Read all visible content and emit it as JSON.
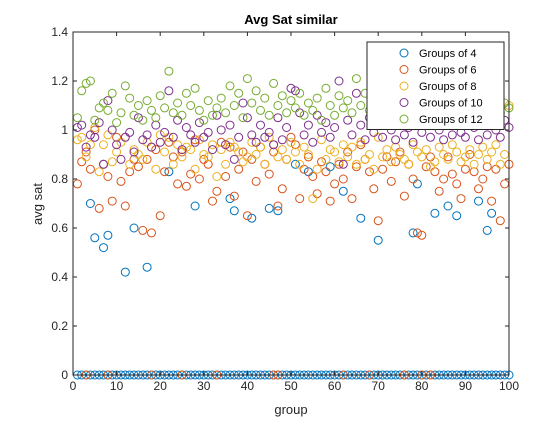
{
  "chart_data": {
    "type": "scatter",
    "title": "Avg Sat similar",
    "xlabel": "group",
    "ylabel": "avg sat",
    "xlim": [
      0,
      100
    ],
    "ylim": [
      0,
      1.4
    ],
    "xticks": [
      0,
      10,
      20,
      30,
      40,
      50,
      60,
      70,
      80,
      90,
      100
    ],
    "yticks": [
      0,
      0.2,
      0.4,
      0.6,
      0.8,
      1,
      1.2,
      1.4
    ],
    "grid": false,
    "legend_position": "top-right",
    "marker": "open-circle",
    "series": [
      {
        "name": "Groups of 4",
        "color": "#0072BD",
        "x": [
          1,
          2,
          3,
          4,
          5,
          6,
          7,
          8,
          9,
          10,
          11,
          12,
          13,
          14,
          15,
          16,
          17,
          18,
          19,
          20,
          21,
          22,
          23,
          24,
          25,
          26,
          27,
          28,
          29,
          30,
          31,
          32,
          33,
          34,
          35,
          36,
          37,
          38,
          39,
          40,
          41,
          42,
          43,
          44,
          45,
          46,
          47,
          48,
          49,
          50,
          51,
          52,
          53,
          54,
          55,
          56,
          57,
          58,
          59,
          60,
          61,
          62,
          63,
          64,
          65,
          66,
          67,
          68,
          69,
          70,
          71,
          72,
          73,
          74,
          75,
          76,
          77,
          78,
          79,
          80,
          81,
          82,
          83,
          84,
          85,
          86,
          87,
          88,
          89,
          90,
          91,
          92,
          93,
          94,
          95,
          96,
          97,
          98,
          99,
          100,
          4,
          5,
          7,
          8,
          12,
          14,
          17,
          22,
          28,
          36,
          37,
          41,
          45,
          47,
          51,
          54,
          59,
          62,
          66,
          70,
          78,
          79,
          83,
          86,
          88,
          93,
          95,
          96
        ],
        "y": [
          0,
          0,
          0,
          0,
          0,
          0,
          0,
          0,
          0,
          0,
          0,
          0,
          0,
          0,
          0,
          0,
          0,
          0,
          0,
          0,
          0,
          0,
          0,
          0,
          0,
          0,
          0,
          0,
          0,
          0,
          0,
          0,
          0,
          0,
          0,
          0,
          0,
          0,
          0,
          0,
          0,
          0,
          0,
          0,
          0,
          0,
          0,
          0,
          0,
          0,
          0,
          0,
          0,
          0,
          0,
          0,
          0,
          0,
          0,
          0,
          0,
          0,
          0,
          0,
          0,
          0,
          0,
          0,
          0,
          0,
          0,
          0,
          0,
          0,
          0,
          0,
          0,
          0,
          0,
          0,
          0,
          0,
          0,
          0,
          0,
          0,
          0,
          0,
          0,
          0,
          0,
          0,
          0,
          0,
          0,
          0,
          0,
          0,
          0,
          0,
          0.7,
          0.56,
          0.52,
          0.57,
          0.42,
          0.6,
          0.44,
          0.83,
          0.69,
          0.72,
          0.67,
          0.64,
          0.68,
          0.67,
          0.86,
          0.83,
          0.85,
          0.75,
          0.64,
          0.55,
          0.58,
          0.78,
          0.66,
          0.69,
          0.65,
          0.71,
          0.59,
          0.66
        ]
      },
      {
        "name": "Groups of 6",
        "color": "#D95319",
        "x": [
          1,
          2,
          3,
          4,
          5,
          6,
          7,
          8,
          9,
          10,
          11,
          12,
          13,
          14,
          15,
          16,
          17,
          18,
          19,
          20,
          21,
          22,
          23,
          24,
          25,
          26,
          27,
          28,
          29,
          30,
          31,
          32,
          33,
          34,
          35,
          36,
          37,
          38,
          39,
          40,
          41,
          42,
          43,
          44,
          45,
          46,
          47,
          48,
          49,
          50,
          51,
          52,
          53,
          54,
          55,
          56,
          57,
          58,
          59,
          60,
          61,
          62,
          63,
          64,
          65,
          66,
          67,
          68,
          69,
          70,
          71,
          72,
          73,
          74,
          75,
          76,
          77,
          78,
          79,
          80,
          81,
          82,
          83,
          84,
          85,
          86,
          87,
          88,
          89,
          90,
          91,
          92,
          93,
          94,
          95,
          96,
          97,
          98,
          99,
          100,
          3,
          8,
          18,
          25,
          33,
          46,
          47,
          62,
          68,
          76,
          80,
          82
        ],
        "y": [
          0.78,
          0.87,
          0.91,
          0.84,
          1.0,
          0.68,
          0.86,
          0.81,
          0.71,
          0.97,
          0.79,
          0.69,
          0.83,
          0.88,
          0.85,
          0.59,
          0.88,
          0.58,
          0.92,
          0.65,
          0.83,
          0.95,
          0.89,
          0.78,
          0.91,
          0.77,
          0.82,
          0.96,
          0.8,
          0.88,
          0.86,
          0.71,
          0.75,
          0.95,
          0.81,
          0.93,
          0.73,
          0.84,
          0.91,
          0.65,
          0.88,
          0.79,
          0.93,
          0.86,
          0.82,
          0.91,
          0.69,
          0.76,
          0.88,
          0.97,
          0.94,
          0.72,
          0.84,
          0.89,
          0.81,
          0.74,
          0.87,
          0.83,
          0.71,
          0.78,
          0.86,
          0.8,
          0.91,
          0.72,
          0.85,
          0.94,
          0.88,
          0.83,
          0.76,
          0.63,
          0.84,
          0.89,
          0.79,
          0.87,
          0.91,
          0.73,
          0.86,
          0.8,
          0.58,
          0.57,
          0.85,
          0.89,
          0.83,
          0.75,
          0.8,
          0.89,
          0.82,
          0.78,
          0.72,
          0.84,
          0.9,
          0.83,
          0.76,
          0.8,
          0.85,
          0.71,
          0.84,
          0.63,
          0.78,
          0.86,
          0,
          0,
          0,
          0,
          0,
          0,
          0,
          0,
          0,
          0,
          0,
          0
        ]
      },
      {
        "name": "Groups of 8",
        "color": "#EDB120",
        "x": [
          1,
          2,
          3,
          4,
          5,
          6,
          7,
          8,
          9,
          10,
          11,
          12,
          13,
          14,
          15,
          16,
          17,
          18,
          19,
          20,
          21,
          22,
          23,
          24,
          25,
          26,
          27,
          28,
          29,
          30,
          31,
          32,
          33,
          34,
          35,
          36,
          37,
          38,
          39,
          40,
          41,
          42,
          43,
          44,
          45,
          46,
          47,
          48,
          49,
          50,
          51,
          52,
          53,
          54,
          55,
          56,
          57,
          58,
          59,
          60,
          61,
          62,
          63,
          64,
          65,
          66,
          67,
          68,
          69,
          70,
          71,
          72,
          73,
          74,
          75,
          76,
          77,
          78,
          79,
          80,
          81,
          82,
          83,
          84,
          85,
          86,
          87,
          88,
          89,
          90,
          91,
          92,
          93,
          94,
          95,
          96,
          97,
          98,
          99,
          100
        ],
        "y": [
          0.96,
          0.97,
          0.89,
          0.94,
          1.01,
          0.83,
          0.94,
          0.98,
          0.87,
          0.91,
          0.95,
          0.97,
          0.86,
          0.92,
          0.9,
          0.88,
          0.95,
          0.93,
          0.84,
          0.98,
          0.91,
          0.97,
          0.86,
          0.94,
          0.89,
          0.93,
          0.92,
          0.84,
          0.96,
          0.9,
          0.89,
          0.94,
          0.81,
          0.92,
          0.86,
          0.95,
          0.93,
          0.91,
          0.87,
          0.89,
          0.95,
          0.9,
          0.93,
          0.86,
          0.97,
          0.94,
          0.89,
          0.92,
          0.88,
          0.95,
          0.91,
          0.86,
          0.93,
          0.9,
          0.72,
          0.84,
          0.96,
          0.88,
          0.92,
          0.91,
          0.87,
          0.94,
          0.89,
          0.93,
          0.86,
          0.95,
          0.88,
          0.9,
          0.84,
          0.97,
          0.89,
          0.92,
          0.87,
          0.93,
          0.9,
          0.88,
          0.86,
          0.94,
          0.91,
          0.89,
          0.92,
          0.85,
          0.87,
          0.93,
          0.9,
          0.88,
          0.94,
          0.91,
          0.87,
          0.89,
          0.92,
          0.86,
          0.9,
          0.93,
          0.88,
          0.91,
          0.94,
          0.86,
          0.9,
          1.1
        ]
      },
      {
        "name": "Groups of 10",
        "color": "#7E2F8E",
        "x": [
          1,
          2,
          3,
          4,
          5,
          6,
          7,
          8,
          9,
          10,
          11,
          12,
          13,
          14,
          15,
          16,
          17,
          18,
          19,
          20,
          21,
          22,
          23,
          24,
          25,
          26,
          27,
          28,
          29,
          30,
          31,
          32,
          33,
          34,
          35,
          36,
          37,
          38,
          39,
          40,
          41,
          42,
          43,
          44,
          45,
          46,
          47,
          48,
          49,
          50,
          51,
          52,
          53,
          54,
          55,
          56,
          57,
          58,
          59,
          60,
          61,
          62,
          63,
          64,
          65,
          66,
          67,
          68,
          69,
          70,
          71,
          72,
          73,
          74,
          75,
          76,
          77,
          78,
          79,
          80,
          81,
          82,
          83,
          84,
          85,
          86,
          87,
          88,
          89,
          90,
          91,
          92,
          93,
          94,
          95,
          96,
          97,
          98,
          99,
          100
        ],
        "y": [
          1.01,
          1.02,
          0.93,
          0.98,
          0.97,
          1.03,
          0.86,
          1.12,
          1.0,
          0.94,
          0.88,
          0.97,
          0.99,
          0.91,
          1.05,
          0.96,
          0.98,
          0.93,
          1.02,
          0.95,
          0.99,
          1.16,
          0.97,
          1.04,
          0.92,
          1.01,
          0.98,
          0.95,
          1.03,
          0.97,
          0.99,
          0.92,
          1.06,
          1.0,
          0.94,
          1.02,
          0.88,
          0.97,
          1.11,
          1.05,
          0.98,
          0.95,
          1.02,
          0.97,
          0.99,
          0.94,
          1.05,
          0.96,
          1.01,
          1.17,
          1.16,
          1.07,
          0.98,
          1.02,
          0.95,
          1.06,
          0.99,
          1.03,
          0.97,
          1.01,
          1.2,
          0.86,
          1.04,
          0.98,
          1.15,
          1.02,
          0.96,
          1.05,
          0.99,
          1.03,
          0.97,
          1.04,
          1.0,
          0.96,
          1.02,
          0.98,
          1.01,
          0.95,
          1.04,
          0.99,
          1.03,
          0.97,
          1.05,
          1.0,
          0.96,
          1.02,
          0.98,
          1.04,
          0.99,
          0.97,
          1.03,
          1.01,
          0.96,
          1.05,
          0.98,
          1.02,
          1.0,
          0.97,
          1.04,
          1.01
        ]
      },
      {
        "name": "Groups of 12",
        "color": "#77AC30",
        "x": [
          1,
          2,
          3,
          4,
          5,
          6,
          7,
          8,
          9,
          10,
          11,
          12,
          13,
          14,
          15,
          16,
          17,
          18,
          19,
          20,
          21,
          22,
          23,
          24,
          25,
          26,
          27,
          28,
          29,
          30,
          31,
          32,
          33,
          34,
          35,
          36,
          37,
          38,
          39,
          40,
          41,
          42,
          43,
          44,
          45,
          46,
          47,
          48,
          49,
          50,
          51,
          52,
          53,
          54,
          55,
          56,
          57,
          58,
          59,
          60,
          61,
          62,
          63,
          64,
          65,
          66,
          67,
          68,
          69,
          70,
          71,
          72,
          73,
          74,
          75,
          76,
          77,
          78,
          79,
          80,
          81,
          82,
          83,
          84,
          85,
          86,
          87,
          88,
          89,
          90,
          91,
          92,
          93,
          94,
          95,
          96,
          97,
          98,
          99,
          100
        ],
        "y": [
          1.05,
          1.16,
          1.19,
          1.2,
          1.04,
          1.09,
          1.11,
          1.08,
          1.15,
          1.03,
          1.07,
          1.18,
          1.13,
          1.06,
          1.1,
          1.04,
          1.12,
          1.08,
          1.05,
          1.14,
          1.09,
          1.24,
          1.07,
          1.11,
          1.06,
          1.15,
          1.1,
          1.17,
          1.08,
          1.04,
          1.12,
          1.06,
          1.09,
          1.13,
          1.07,
          1.18,
          1.1,
          1.15,
          1.05,
          1.21,
          1.11,
          1.16,
          1.08,
          1.13,
          1.06,
          1.19,
          1.1,
          1.14,
          1.07,
          1.12,
          1.09,
          1.15,
          1.06,
          1.11,
          1.08,
          1.13,
          1.04,
          1.17,
          1.1,
          1.06,
          1.14,
          1.09,
          1.12,
          1.07,
          1.21,
          1.1,
          1.15,
          1.08,
          1.13,
          1.06,
          1.11,
          1.09,
          1.14,
          1.07,
          1.12,
          1.1,
          1.08,
          1.16,
          1.05,
          1.11,
          1.09,
          1.13,
          1.07,
          1.12,
          1.06,
          1.1,
          1.14,
          1.08,
          1.11,
          1.07,
          1.13,
          1.09,
          1.12,
          1.06,
          1.1,
          1.08,
          1.14,
          1.07,
          1.11,
          1.09
        ]
      }
    ]
  }
}
